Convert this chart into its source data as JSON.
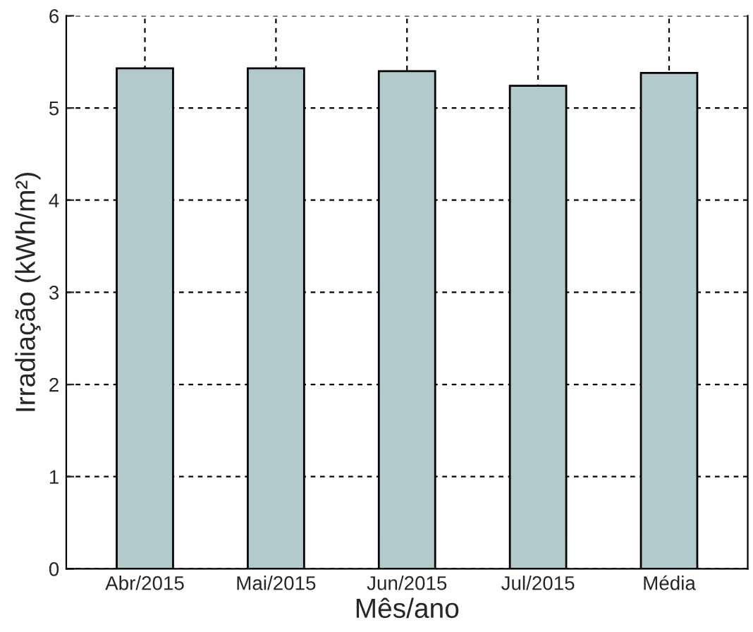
{
  "chart_data": {
    "type": "bar",
    "xlabel": "Mês/ano",
    "ylabel": "Irradiação (kWh/m²)",
    "categories": [
      "Abr/2015",
      "Mai/2015",
      "Jun/2015",
      "Jul/2015",
      "Média"
    ],
    "values": [
      5.43,
      5.43,
      5.4,
      5.24,
      5.38
    ],
    "color": "#b2cacb",
    "ylim": [
      0,
      6
    ],
    "yticks": [
      0,
      1,
      2,
      3,
      4,
      5,
      6
    ],
    "grid": true
  }
}
